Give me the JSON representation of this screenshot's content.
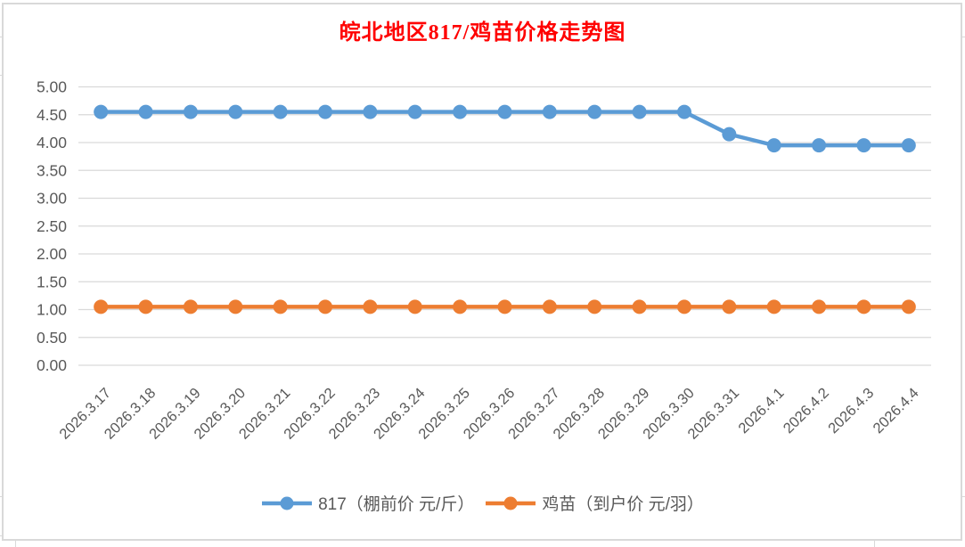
{
  "chart_data": {
    "type": "line",
    "title": "皖北地区817/鸡苗价格走势图",
    "title_color": "#FF0000",
    "categories": [
      "2026.3.17",
      "2026.3.18",
      "2026.3.19",
      "2026.3.20",
      "2026.3.21",
      "2026.3.22",
      "2026.3.23",
      "2026.3.24",
      "2026.3.25",
      "2026.3.26",
      "2026.3.27",
      "2026.3.28",
      "2026.3.29",
      "2026.3.30",
      "2026.3.31",
      "2026.4.1",
      "2026.4.2",
      "2026.4.3",
      "2026.4.4"
    ],
    "series": [
      {
        "name": "817（棚前价 元/斤）",
        "color": "#5B9BD5",
        "values": [
          4.55,
          4.55,
          4.55,
          4.55,
          4.55,
          4.55,
          4.55,
          4.55,
          4.55,
          4.55,
          4.55,
          4.55,
          4.55,
          4.55,
          4.15,
          3.95,
          3.95,
          3.95,
          3.95
        ]
      },
      {
        "name": "鸡苗（到户价 元/羽）",
        "color": "#ED7D31",
        "values": [
          1.05,
          1.05,
          1.05,
          1.05,
          1.05,
          1.05,
          1.05,
          1.05,
          1.05,
          1.05,
          1.05,
          1.05,
          1.05,
          1.05,
          1.05,
          1.05,
          1.05,
          1.05,
          1.05
        ]
      }
    ],
    "xlabel": "",
    "ylabel": "",
    "ylim": [
      0,
      5
    ],
    "ytick_step": 0.5,
    "ytick_labels": [
      "0.00",
      "0.50",
      "1.00",
      "1.50",
      "2.00",
      "2.50",
      "3.00",
      "3.50",
      "4.00",
      "4.50",
      "5.00"
    ],
    "grid": true,
    "legend_position": "bottom",
    "axis_label_color": "#595959",
    "gridline_color": "#D9D9D9",
    "frame_border_color": "#D9D9D9",
    "background": "#FFFFFF"
  }
}
